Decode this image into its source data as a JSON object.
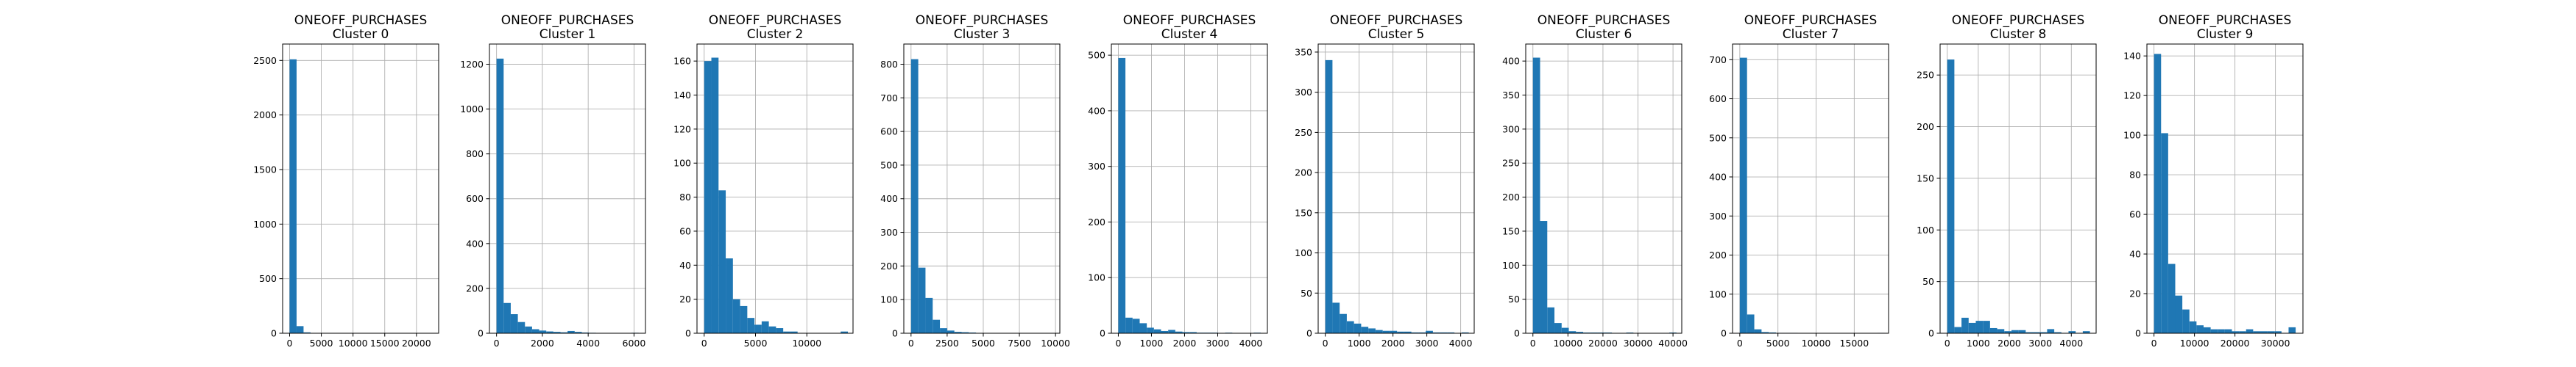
{
  "figure": {
    "background": "#ffffff",
    "bar_color": "#1f77b4",
    "grid_color": "#b0b0b0"
  },
  "chart_data": [
    {
      "type": "bar",
      "title": "ONEOFF_PURCHASES\nCluster 0",
      "xlim": [
        -1100,
        23500
      ],
      "ylim": [
        0,
        2650
      ],
      "xticks": [
        0,
        5000,
        10000,
        15000,
        20000
      ],
      "yticks": [
        0,
        500,
        1000,
        1500,
        2000,
        2500
      ],
      "bin_width": 1100,
      "values": [
        2510,
        65,
        8,
        2,
        1,
        0,
        0,
        0,
        0,
        0,
        0,
        0,
        0,
        0,
        0,
        0,
        0,
        0,
        0,
        1
      ]
    },
    {
      "type": "bar",
      "title": "ONEOFF_PURCHASES\nCluster 1",
      "xlim": [
        -310,
        6500
      ],
      "ylim": [
        0,
        1290
      ],
      "xticks": [
        0,
        2000,
        4000,
        6000
      ],
      "yticks": [
        0,
        200,
        400,
        600,
        800,
        1000,
        1200
      ],
      "bin_width": 310,
      "values": [
        1225,
        135,
        85,
        50,
        30,
        18,
        12,
        8,
        6,
        4,
        10,
        6,
        3,
        2,
        1,
        1,
        1,
        0,
        0,
        2
      ]
    },
    {
      "type": "bar",
      "title": "ONEOFF_PURCHASES\nCluster 2",
      "xlim": [
        -700,
        14500
      ],
      "ylim": [
        0,
        170
      ],
      "xticks": [
        0,
        5000,
        10000
      ],
      "yticks": [
        0,
        20,
        40,
        60,
        80,
        100,
        120,
        140,
        160
      ],
      "bin_width": 700,
      "values": [
        160,
        162,
        84,
        44,
        20,
        16,
        9,
        5,
        7,
        4,
        3,
        1,
        1,
        0,
        0,
        0,
        0,
        0,
        0,
        1
      ]
    },
    {
      "type": "bar",
      "title": "ONEOFF_PURCHASES\nCluster 3",
      "xlim": [
        -500,
        10300
      ],
      "ylim": [
        0,
        860
      ],
      "xticks": [
        0,
        2500,
        5000,
        7500,
        10000
      ],
      "yticks": [
        0,
        100,
        200,
        300,
        400,
        500,
        600,
        700,
        800
      ],
      "bin_width": 500,
      "values": [
        815,
        195,
        105,
        40,
        15,
        8,
        4,
        3,
        2,
        1,
        1,
        1,
        1,
        0,
        0,
        0,
        0,
        0,
        0,
        1
      ]
    },
    {
      "type": "bar",
      "title": "ONEOFF_PURCHASES\nCluster 4",
      "xlim": [
        -210,
        4500
      ],
      "ylim": [
        0,
        520
      ],
      "xticks": [
        0,
        1000,
        2000,
        3000,
        4000
      ],
      "yticks": [
        0,
        100,
        200,
        300,
        400,
        500
      ],
      "bin_width": 215,
      "values": [
        495,
        28,
        26,
        18,
        10,
        7,
        4,
        6,
        3,
        2,
        2,
        1,
        1,
        1,
        0,
        1,
        0,
        0,
        0,
        1
      ]
    },
    {
      "type": "bar",
      "title": "ONEOFF_PURCHASES\nCluster 5",
      "xlim": [
        -210,
        4400
      ],
      "ylim": [
        0,
        360
      ],
      "xticks": [
        0,
        1000,
        2000,
        3000,
        4000
      ],
      "yticks": [
        0,
        50,
        100,
        150,
        200,
        250,
        300,
        350
      ],
      "bin_width": 212,
      "values": [
        340,
        38,
        24,
        15,
        12,
        8,
        6,
        4,
        3,
        3,
        2,
        2,
        1,
        1,
        3,
        1,
        1,
        1,
        0,
        1
      ]
    },
    {
      "type": "bar",
      "title": "ONEOFF_PURCHASES\nCluster 6",
      "xlim": [
        -2050,
        42500
      ],
      "ylim": [
        0,
        425
      ],
      "xticks": [
        0,
        10000,
        20000,
        30000,
        40000
      ],
      "yticks": [
        0,
        50,
        100,
        150,
        200,
        250,
        300,
        350,
        400
      ],
      "bin_width": 2050,
      "values": [
        405,
        165,
        38,
        15,
        8,
        3,
        2,
        1,
        1,
        1,
        1,
        0,
        0,
        1,
        0,
        0,
        0,
        0,
        0,
        1
      ]
    },
    {
      "type": "bar",
      "title": "ONEOFF_PURCHASES\nCluster 7",
      "xlim": [
        -950,
        19500
      ],
      "ylim": [
        0,
        740
      ],
      "xticks": [
        0,
        5000,
        10000,
        15000
      ],
      "yticks": [
        0,
        100,
        200,
        300,
        400,
        500,
        600,
        700
      ],
      "bin_width": 950,
      "values": [
        705,
        48,
        10,
        3,
        2,
        1,
        1,
        1,
        0,
        0,
        0,
        0,
        0,
        0,
        0,
        0,
        0,
        0,
        0,
        1
      ]
    },
    {
      "type": "bar",
      "title": "ONEOFF_PURCHASES\nCluster 8",
      "xlim": [
        -230,
        4800
      ],
      "ylim": [
        0,
        280
      ],
      "xticks": [
        0,
        1000,
        2000,
        3000,
        4000
      ],
      "yticks": [
        0,
        50,
        100,
        150,
        200,
        250
      ],
      "bin_width": 230,
      "values": [
        265,
        6,
        15,
        10,
        12,
        12,
        5,
        4,
        2,
        3,
        3,
        1,
        1,
        1,
        4,
        1,
        0,
        2,
        0,
        2
      ]
    },
    {
      "type": "bar",
      "title": "ONEOFF_PURCHASES\nCluster 9",
      "xlim": [
        -1750,
        36800
      ],
      "ylim": [
        0,
        146
      ],
      "xticks": [
        0,
        10000,
        20000,
        30000
      ],
      "yticks": [
        0,
        20,
        40,
        60,
        80,
        100,
        120,
        140
      ],
      "bin_width": 1750,
      "values": [
        141,
        101,
        35,
        19,
        12,
        6,
        4,
        3,
        2,
        2,
        2,
        1,
        1,
        2,
        1,
        1,
        1,
        1,
        0,
        3
      ]
    }
  ]
}
